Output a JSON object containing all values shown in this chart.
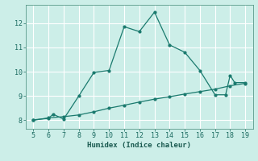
{
  "xlabel": "Humidex (Indice chaleur)",
  "bg_color": "#cceee8",
  "grid_color": "#ffffff",
  "line_color": "#1a7a6e",
  "xlim": [
    4.5,
    19.5
  ],
  "ylim": [
    7.65,
    12.75
  ],
  "xticks": [
    5,
    6,
    7,
    8,
    9,
    10,
    11,
    12,
    13,
    14,
    15,
    16,
    17,
    18,
    19
  ],
  "yticks": [
    8,
    9,
    10,
    11,
    12
  ],
  "curve1_x": [
    5,
    6,
    6.3,
    7,
    8,
    9,
    10,
    11,
    12,
    13,
    14,
    15,
    16,
    17,
    17.7,
    18,
    18.3,
    19
  ],
  "curve1_y": [
    8.02,
    8.08,
    8.25,
    8.05,
    9.0,
    9.97,
    10.05,
    11.85,
    11.65,
    12.45,
    11.1,
    10.8,
    10.05,
    9.05,
    9.05,
    9.85,
    9.55,
    9.55
  ],
  "curve2_x": [
    5,
    6,
    7,
    8,
    9,
    10,
    11,
    12,
    13,
    14,
    15,
    16,
    17,
    18,
    19
  ],
  "curve2_y": [
    8.0,
    8.1,
    8.15,
    8.22,
    8.35,
    8.5,
    8.62,
    8.75,
    8.87,
    8.97,
    9.08,
    9.18,
    9.28,
    9.42,
    9.52
  ]
}
